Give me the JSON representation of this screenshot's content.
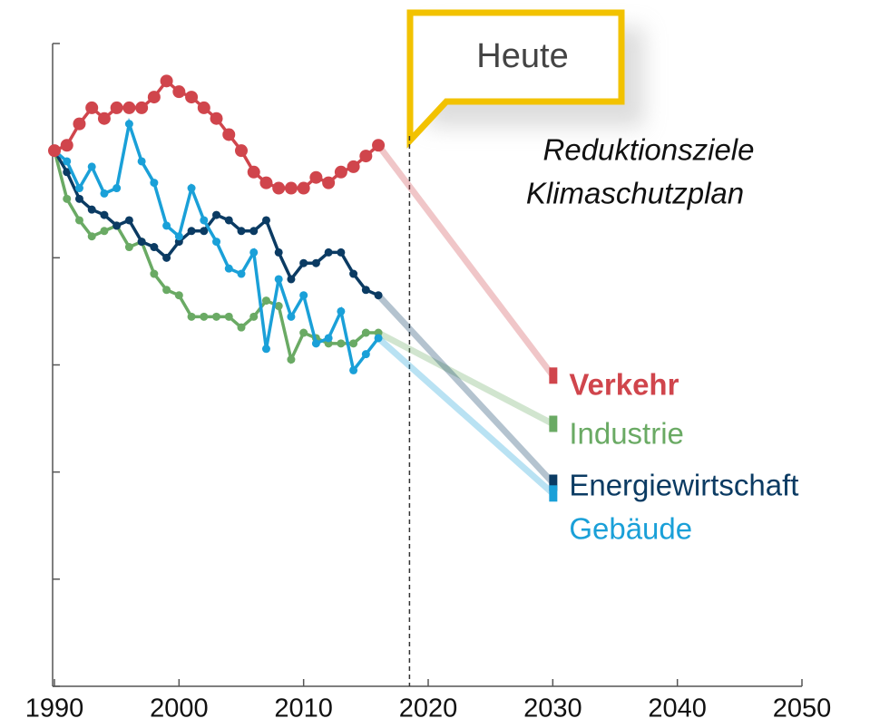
{
  "chart_data": {
    "type": "line",
    "x": [
      1990,
      1991,
      1992,
      1993,
      1994,
      1995,
      1996,
      1997,
      1998,
      1999,
      2000,
      2001,
      2002,
      2003,
      2004,
      2005,
      2006,
      2007,
      2008,
      2009,
      2010,
      2011,
      2012,
      2013,
      2014,
      2015,
      2016
    ],
    "target_x": 2030,
    "series": [
      {
        "name": "Verkehr",
        "color": "#d0454c",
        "values": [
          100,
          101,
          105,
          108,
          106,
          108,
          108,
          108,
          110,
          113,
          111,
          110,
          108,
          106,
          103,
          100,
          96,
          94,
          93,
          93,
          93,
          95,
          94,
          96,
          97,
          99,
          101
        ],
        "target": 58
      },
      {
        "name": "Industrie",
        "color": "#6aaa64",
        "values": [
          100,
          91,
          87,
          84,
          85,
          86,
          82,
          83,
          77,
          74,
          73,
          69,
          69,
          69,
          69,
          67,
          69,
          72,
          71,
          61,
          66,
          65,
          64,
          64,
          64,
          66,
          66
        ],
        "target": 49
      },
      {
        "name": "Energiewirtschaft",
        "color": "#0b3b63",
        "values": [
          100,
          96,
          91,
          89,
          88,
          86,
          87,
          83,
          82,
          80,
          83,
          85,
          85,
          88,
          87,
          85,
          85,
          87,
          81,
          76,
          79,
          79,
          81,
          81,
          77,
          74,
          73
        ],
        "target": 38
      },
      {
        "name": "Gebäude",
        "color": "#1aa0d8",
        "values": [
          100,
          98,
          93,
          97,
          92,
          93,
          105,
          98,
          94,
          86,
          84,
          93,
          87,
          83,
          78,
          77,
          81,
          63,
          76,
          69,
          73,
          64,
          65,
          70,
          59,
          62,
          65
        ],
        "target": 36
      }
    ],
    "xlim": [
      1990,
      2050
    ],
    "xticks": [
      1990,
      2000,
      2010,
      2020,
      2030,
      2040,
      2050
    ],
    "ylim": [
      0,
      120
    ],
    "yticks": [
      0,
      20,
      40,
      60,
      80,
      100,
      120
    ],
    "annotation": {
      "text": "Heute",
      "x": 2018.5
    },
    "note": [
      "Reduktionsziele",
      "Klimaschutzplan"
    ]
  }
}
